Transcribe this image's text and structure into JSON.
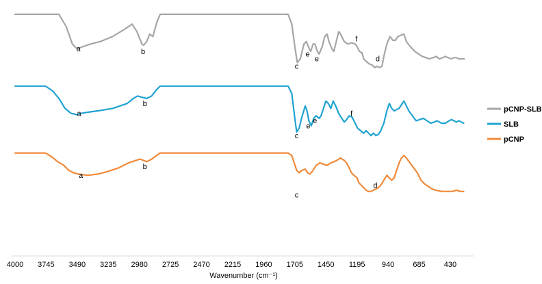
{
  "chart_data": {
    "type": "line",
    "title": "",
    "xlabel": "Wavenumber (cm⁻¹)",
    "ylabel": "",
    "xlim": [
      4000,
      250
    ],
    "x_reversed": true,
    "x_ticks": [
      4000,
      3745,
      3490,
      3235,
      2980,
      2725,
      2470,
      2215,
      1960,
      1705,
      1450,
      1195,
      940,
      685,
      430
    ],
    "x_tick_labels": [
      "4000",
      "3745",
      "3490",
      "3235",
      "2980",
      "2725",
      "2470",
      "2215",
      "1960",
      "1705",
      "1450",
      "1195",
      "940",
      "685",
      "430"
    ],
    "ylim": [
      0,
      100
    ],
    "legend_position": "right",
    "grid": false,
    "series": [
      {
        "name": "pCNP-SLB",
        "color": "#a6a6a6",
        "points": [
          [
            4000,
            97
          ],
          [
            3640,
            97
          ],
          [
            3580,
            92
          ],
          [
            3530,
            85
          ],
          [
            3490,
            83
          ],
          [
            3440,
            84
          ],
          [
            3380,
            85
          ],
          [
            3300,
            86
          ],
          [
            3200,
            88
          ],
          [
            3100,
            91
          ],
          [
            3040,
            93
          ],
          [
            3000,
            90
          ],
          [
            2960,
            85
          ],
          [
            2945,
            84.5
          ],
          [
            2920,
            86
          ],
          [
            2895,
            89
          ],
          [
            2870,
            88
          ],
          [
            2835,
            94
          ],
          [
            2810,
            97
          ],
          [
            1760,
            97
          ],
          [
            1730,
            93
          ],
          [
            1705,
            84
          ],
          [
            1685,
            77.5
          ],
          [
            1660,
            79
          ],
          [
            1630,
            85
          ],
          [
            1610,
            86
          ],
          [
            1590,
            83.5
          ],
          [
            1575,
            82
          ],
          [
            1555,
            85
          ],
          [
            1540,
            85
          ],
          [
            1520,
            82
          ],
          [
            1505,
            81
          ],
          [
            1480,
            84
          ],
          [
            1460,
            88
          ],
          [
            1440,
            89
          ],
          [
            1425,
            86
          ],
          [
            1400,
            83
          ],
          [
            1385,
            82
          ],
          [
            1365,
            86
          ],
          [
            1345,
            90
          ],
          [
            1330,
            89
          ],
          [
            1300,
            86
          ],
          [
            1270,
            85
          ],
          [
            1240,
            85.5
          ],
          [
            1210,
            85
          ],
          [
            1195,
            84
          ],
          [
            1175,
            82
          ],
          [
            1155,
            81.5
          ],
          [
            1140,
            79
          ],
          [
            1120,
            78
          ],
          [
            1095,
            77
          ],
          [
            1070,
            76.5
          ],
          [
            1050,
            75.5
          ],
          [
            1030,
            76
          ],
          [
            1010,
            75.5
          ],
          [
            990,
            76
          ],
          [
            975,
            80
          ],
          [
            950,
            85
          ],
          [
            925,
            88
          ],
          [
            900,
            86.5
          ],
          [
            880,
            86.5
          ],
          [
            860,
            88
          ],
          [
            835,
            88.5
          ],
          [
            810,
            89
          ],
          [
            790,
            86
          ],
          [
            760,
            84
          ],
          [
            720,
            82
          ],
          [
            690,
            81
          ],
          [
            660,
            80
          ],
          [
            630,
            79.5
          ],
          [
            600,
            79
          ],
          [
            570,
            79.5
          ],
          [
            545,
            80
          ],
          [
            520,
            79
          ],
          [
            490,
            79.5
          ],
          [
            470,
            80
          ],
          [
            450,
            79.5
          ],
          [
            420,
            79
          ],
          [
            400,
            79.5
          ],
          [
            380,
            79.5
          ],
          [
            360,
            79
          ],
          [
            335,
            79
          ],
          [
            315,
            79
          ]
        ]
      },
      {
        "name": "SLB",
        "color": "#1fa3d1",
        "points": [
          [
            4000,
            68
          ],
          [
            3750,
            68
          ],
          [
            3690,
            66
          ],
          [
            3640,
            63
          ],
          [
            3590,
            59
          ],
          [
            3540,
            57
          ],
          [
            3495,
            56.5
          ],
          [
            3460,
            57
          ],
          [
            3400,
            57.5
          ],
          [
            3320,
            58
          ],
          [
            3200,
            59
          ],
          [
            3080,
            61
          ],
          [
            3030,
            63
          ],
          [
            2995,
            64
          ],
          [
            2960,
            63.5
          ],
          [
            2920,
            63
          ],
          [
            2880,
            64
          ],
          [
            2840,
            66.5
          ],
          [
            2810,
            68
          ],
          [
            1760,
            68
          ],
          [
            1730,
            65
          ],
          [
            1705,
            55
          ],
          [
            1690,
            49.5
          ],
          [
            1670,
            51
          ],
          [
            1650,
            55
          ],
          [
            1620,
            60
          ],
          [
            1605,
            58
          ],
          [
            1590,
            54
          ],
          [
            1570,
            52
          ],
          [
            1550,
            55
          ],
          [
            1530,
            56
          ],
          [
            1505,
            55
          ],
          [
            1490,
            56
          ],
          [
            1470,
            59
          ],
          [
            1450,
            62
          ],
          [
            1430,
            61
          ],
          [
            1410,
            59
          ],
          [
            1390,
            62
          ],
          [
            1370,
            60
          ],
          [
            1345,
            57
          ],
          [
            1320,
            55
          ],
          [
            1300,
            53.5
          ],
          [
            1280,
            54.5
          ],
          [
            1260,
            56
          ],
          [
            1235,
            55.5
          ],
          [
            1210,
            53
          ],
          [
            1190,
            51
          ],
          [
            1165,
            50
          ],
          [
            1140,
            49
          ],
          [
            1120,
            50
          ],
          [
            1100,
            49
          ],
          [
            1080,
            48
          ],
          [
            1060,
            49
          ],
          [
            1040,
            48
          ],
          [
            1020,
            48.5
          ],
          [
            1000,
            50
          ],
          [
            975,
            53
          ],
          [
            950,
            58
          ],
          [
            930,
            61
          ],
          [
            910,
            59
          ],
          [
            890,
            58
          ],
          [
            870,
            58.5
          ],
          [
            850,
            59
          ],
          [
            830,
            60.5
          ],
          [
            810,
            62
          ],
          [
            790,
            60
          ],
          [
            770,
            58
          ],
          [
            740,
            56
          ],
          [
            710,
            54
          ],
          [
            680,
            54.5
          ],
          [
            650,
            55
          ],
          [
            620,
            54
          ],
          [
            590,
            53
          ],
          [
            560,
            53.5
          ],
          [
            540,
            54
          ],
          [
            520,
            53.5
          ],
          [
            500,
            53
          ],
          [
            470,
            53
          ],
          [
            440,
            54
          ],
          [
            420,
            54.5
          ],
          [
            400,
            54
          ],
          [
            380,
            53.5
          ],
          [
            360,
            54
          ],
          [
            340,
            53.5
          ],
          [
            320,
            53
          ]
        ]
      },
      {
        "name": "pCNP",
        "color": "#f08a3a",
        "points": [
          [
            4000,
            41
          ],
          [
            3750,
            41
          ],
          [
            3700,
            39.5
          ],
          [
            3650,
            37.5
          ],
          [
            3600,
            36
          ],
          [
            3560,
            34
          ],
          [
            3520,
            33
          ],
          [
            3480,
            32.5
          ],
          [
            3400,
            32
          ],
          [
            3320,
            32.5
          ],
          [
            3240,
            33.5
          ],
          [
            3150,
            35
          ],
          [
            3070,
            37
          ],
          [
            3010,
            38
          ],
          [
            2975,
            38.5
          ],
          [
            2945,
            38
          ],
          [
            2920,
            37.5
          ],
          [
            2880,
            38.5
          ],
          [
            2840,
            40
          ],
          [
            2810,
            41
          ],
          [
            1760,
            41
          ],
          [
            1730,
            40
          ],
          [
            1710,
            37
          ],
          [
            1690,
            34
          ],
          [
            1670,
            33
          ],
          [
            1645,
            34
          ],
          [
            1620,
            34.5
          ],
          [
            1600,
            33
          ],
          [
            1580,
            32.5
          ],
          [
            1555,
            34
          ],
          [
            1530,
            36
          ],
          [
            1500,
            37
          ],
          [
            1470,
            36.5
          ],
          [
            1440,
            36
          ],
          [
            1410,
            37
          ],
          [
            1385,
            37.5
          ],
          [
            1360,
            38
          ],
          [
            1330,
            39
          ],
          [
            1300,
            38
          ],
          [
            1280,
            37
          ],
          [
            1260,
            35
          ],
          [
            1240,
            33
          ],
          [
            1220,
            32
          ],
          [
            1195,
            31
          ],
          [
            1180,
            29
          ],
          [
            1160,
            28
          ],
          [
            1140,
            27
          ],
          [
            1120,
            26
          ],
          [
            1100,
            25.5
          ],
          [
            1080,
            25.5
          ],
          [
            1060,
            26
          ],
          [
            1040,
            26.5
          ],
          [
            1020,
            27
          ],
          [
            1000,
            28
          ],
          [
            975,
            30
          ],
          [
            950,
            32
          ],
          [
            930,
            31
          ],
          [
            910,
            30
          ],
          [
            890,
            31
          ],
          [
            870,
            34
          ],
          [
            850,
            37
          ],
          [
            830,
            39
          ],
          [
            810,
            40
          ],
          [
            790,
            39
          ],
          [
            760,
            37
          ],
          [
            730,
            35
          ],
          [
            700,
            33
          ],
          [
            670,
            30
          ],
          [
            640,
            28.5
          ],
          [
            610,
            27.5
          ],
          [
            580,
            26.5
          ],
          [
            550,
            26
          ],
          [
            500,
            25.5
          ],
          [
            470,
            25.5
          ],
          [
            440,
            25.5
          ],
          [
            410,
            25.5
          ],
          [
            380,
            26
          ],
          [
            350,
            25.5
          ],
          [
            320,
            25.5
          ]
        ]
      }
    ],
    "annotations": [
      {
        "text": "a",
        "x": 3480,
        "y": 82
      },
      {
        "text": "b",
        "x": 2950,
        "y": 81
      },
      {
        "text": "c",
        "x": 1690,
        "y": 75
      },
      {
        "text": "e",
        "x": 1600,
        "y": 80
      },
      {
        "text": "e",
        "x": 1525,
        "y": 78
      },
      {
        "text": "f",
        "x": 1200,
        "y": 86
      },
      {
        "text": "d",
        "x": 1025,
        "y": 78
      },
      {
        "text": "a",
        "x": 3475,
        "y": 56
      },
      {
        "text": "b",
        "x": 2935,
        "y": 60
      },
      {
        "text": "c",
        "x": 1690,
        "y": 47
      },
      {
        "text": "e",
        "x": 1595,
        "y": 51
      },
      {
        "text": "e",
        "x": 1540,
        "y": 53
      },
      {
        "text": "f",
        "x": 1240,
        "y": 56
      },
      {
        "text": "a",
        "x": 3460,
        "y": 31
      },
      {
        "text": "b",
        "x": 2935,
        "y": 34.5
      },
      {
        "text": "c",
        "x": 1690,
        "y": 23
      },
      {
        "text": "d",
        "x": 1045,
        "y": 27
      }
    ]
  }
}
